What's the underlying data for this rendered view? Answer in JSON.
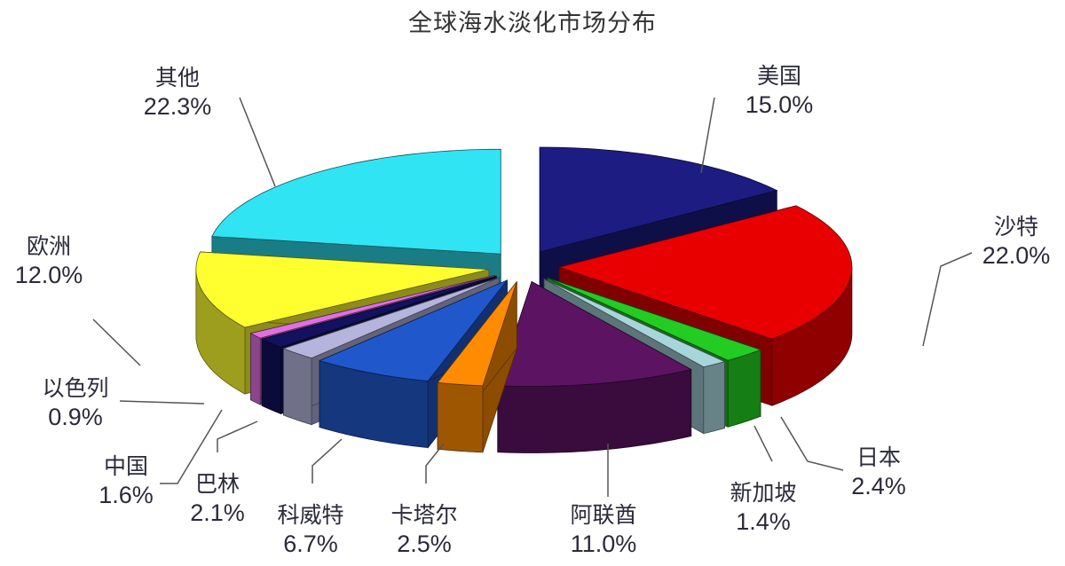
{
  "chart_data": {
    "type": "pie",
    "style": "3d-exploded",
    "title": "全球海水淡化市场分布",
    "slices": [
      {
        "label": "美国",
        "value": 15.0,
        "display": "15.0%",
        "color": "#1c1c82"
      },
      {
        "label": "沙特",
        "value": 22.0,
        "display": "22.0%",
        "color": "#e80000"
      },
      {
        "label": "日本",
        "value": 2.4,
        "display": "2.4%",
        "color": "#22cc22"
      },
      {
        "label": "新加坡",
        "value": 1.4,
        "display": "1.4%",
        "color": "#a8d4dc"
      },
      {
        "label": "阿联酋",
        "value": 11.0,
        "display": "11.0%",
        "color": "#5c1462"
      },
      {
        "label": "卡塔尔",
        "value": 2.5,
        "display": "2.5%",
        "color": "#ff8c00"
      },
      {
        "label": "科威特",
        "value": 6.7,
        "display": "6.7%",
        "color": "#2058cc"
      },
      {
        "label": "巴林",
        "value": 2.1,
        "display": "2.1%",
        "color": "#b4b4dc"
      },
      {
        "label": "中国",
        "value": 1.6,
        "display": "1.6%",
        "color": "#12125e"
      },
      {
        "label": "以色列",
        "value": 0.9,
        "display": "0.9%",
        "color": "#e070e0"
      },
      {
        "label": "欧洲",
        "value": 12.0,
        "display": "12.0%",
        "color": "#ffff30"
      },
      {
        "label": "其他",
        "value": 22.3,
        "display": "22.3%",
        "color": "#30e4f4"
      }
    ]
  }
}
